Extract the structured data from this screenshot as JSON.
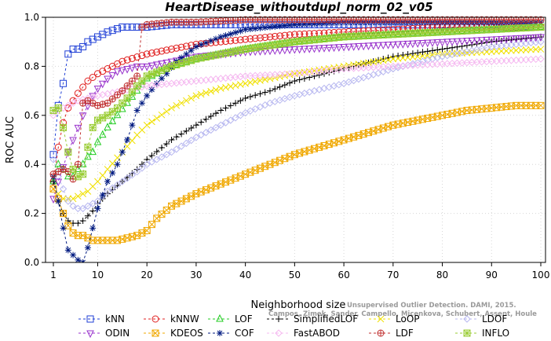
{
  "chart_data": {
    "type": "line",
    "title": "HeartDisease_withoutdupl_norm_02_v05",
    "xlabel": "Neighborhood size",
    "ylabel": "ROC AUC",
    "xlim": [
      1,
      100
    ],
    "ylim": [
      0.0,
      1.0
    ],
    "x_ticks": [
      1,
      10,
      20,
      30,
      40,
      50,
      60,
      70,
      80,
      90,
      100
    ],
    "y_ticks": [
      "0.0",
      "0.2",
      "0.4",
      "0.6",
      "0.8",
      "1.0"
    ],
    "grid": true,
    "legend_position": "bottom",
    "watermark": [
      "Unsupervised Outlier Detection. DAMI, 2015.",
      "Campos, Zimek, Sander, Campello, Micenkova, Schubert, Assent, Houle"
    ],
    "series": [
      {
        "name": "kNN",
        "color": "#1f3fd6",
        "marker": "square",
        "points": [
          [
            1,
            0.44
          ],
          [
            2,
            0.64
          ],
          [
            3,
            0.73
          ],
          [
            4,
            0.85
          ],
          [
            5,
            0.87
          ],
          [
            6,
            0.87
          ],
          [
            7,
            0.88
          ],
          [
            8,
            0.9
          ],
          [
            9,
            0.91
          ],
          [
            10,
            0.92
          ],
          [
            12,
            0.94
          ],
          [
            15,
            0.96
          ],
          [
            18,
            0.96
          ],
          [
            20,
            0.96
          ],
          [
            25,
            0.97
          ],
          [
            30,
            0.97
          ],
          [
            40,
            0.97
          ],
          [
            50,
            0.97
          ],
          [
            60,
            0.97
          ],
          [
            70,
            0.97
          ],
          [
            80,
            0.97
          ],
          [
            90,
            0.97
          ],
          [
            100,
            0.96
          ]
        ]
      },
      {
        "name": "kNNW",
        "color": "#e02020",
        "marker": "circle",
        "points": [
          [
            1,
            0.33
          ],
          [
            2,
            0.47
          ],
          [
            3,
            0.57
          ],
          [
            4,
            0.63
          ],
          [
            5,
            0.66
          ],
          [
            6,
            0.69
          ],
          [
            8,
            0.74
          ],
          [
            10,
            0.77
          ],
          [
            12,
            0.79
          ],
          [
            15,
            0.82
          ],
          [
            20,
            0.85
          ],
          [
            25,
            0.87
          ],
          [
            30,
            0.89
          ],
          [
            40,
            0.91
          ],
          [
            50,
            0.93
          ],
          [
            60,
            0.94
          ],
          [
            70,
            0.95
          ],
          [
            80,
            0.96
          ],
          [
            90,
            0.96
          ],
          [
            100,
            0.96
          ]
        ]
      },
      {
        "name": "LOF",
        "color": "#22cc22",
        "marker": "triangle",
        "points": [
          [
            1,
            0.33
          ],
          [
            2,
            0.4
          ],
          [
            3,
            0.38
          ],
          [
            4,
            0.35
          ],
          [
            5,
            0.35
          ],
          [
            6,
            0.38
          ],
          [
            7,
            0.4
          ],
          [
            8,
            0.43
          ],
          [
            9,
            0.45
          ],
          [
            10,
            0.49
          ],
          [
            12,
            0.55
          ],
          [
            14,
            0.6
          ],
          [
            16,
            0.65
          ],
          [
            18,
            0.7
          ],
          [
            20,
            0.75
          ],
          [
            25,
            0.8
          ],
          [
            30,
            0.83
          ],
          [
            35,
            0.85
          ],
          [
            40,
            0.87
          ],
          [
            50,
            0.9
          ],
          [
            60,
            0.92
          ],
          [
            70,
            0.93
          ],
          [
            80,
            0.94
          ],
          [
            90,
            0.95
          ],
          [
            100,
            0.96
          ]
        ]
      },
      {
        "name": "SimplifiedLOF",
        "color": "#000000",
        "marker": "plus",
        "points": [
          [
            1,
            0.33
          ],
          [
            2,
            0.25
          ],
          [
            3,
            0.2
          ],
          [
            4,
            0.17
          ],
          [
            5,
            0.16
          ],
          [
            6,
            0.16
          ],
          [
            7,
            0.17
          ],
          [
            8,
            0.19
          ],
          [
            9,
            0.21
          ],
          [
            10,
            0.24
          ],
          [
            12,
            0.28
          ],
          [
            15,
            0.33
          ],
          [
            18,
            0.38
          ],
          [
            20,
            0.42
          ],
          [
            25,
            0.5
          ],
          [
            30,
            0.56
          ],
          [
            35,
            0.62
          ],
          [
            40,
            0.67
          ],
          [
            45,
            0.7
          ],
          [
            50,
            0.74
          ],
          [
            60,
            0.79
          ],
          [
            70,
            0.84
          ],
          [
            80,
            0.87
          ],
          [
            90,
            0.9
          ],
          [
            100,
            0.92
          ]
        ]
      },
      {
        "name": "LoOP",
        "color": "#f0e000",
        "marker": "x",
        "points": [
          [
            1,
            0.3
          ],
          [
            2,
            0.28
          ],
          [
            3,
            0.26
          ],
          [
            4,
            0.26
          ],
          [
            5,
            0.26
          ],
          [
            6,
            0.27
          ],
          [
            7,
            0.28
          ],
          [
            8,
            0.29
          ],
          [
            10,
            0.33
          ],
          [
            12,
            0.38
          ],
          [
            15,
            0.45
          ],
          [
            18,
            0.52
          ],
          [
            20,
            0.56
          ],
          [
            25,
            0.63
          ],
          [
            30,
            0.68
          ],
          [
            35,
            0.71
          ],
          [
            40,
            0.73
          ],
          [
            50,
            0.77
          ],
          [
            60,
            0.8
          ],
          [
            70,
            0.83
          ],
          [
            80,
            0.85
          ],
          [
            90,
            0.86
          ],
          [
            100,
            0.87
          ]
        ]
      },
      {
        "name": "LDOF",
        "color": "#b8b8f0",
        "marker": "diamond",
        "points": [
          [
            1,
            0.42
          ],
          [
            2,
            0.35
          ],
          [
            3,
            0.3
          ],
          [
            4,
            0.25
          ],
          [
            5,
            0.23
          ],
          [
            6,
            0.22
          ],
          [
            7,
            0.22
          ],
          [
            8,
            0.23
          ],
          [
            10,
            0.25
          ],
          [
            12,
            0.29
          ],
          [
            15,
            0.33
          ],
          [
            18,
            0.37
          ],
          [
            20,
            0.4
          ],
          [
            25,
            0.45
          ],
          [
            30,
            0.51
          ],
          [
            35,
            0.56
          ],
          [
            40,
            0.61
          ],
          [
            45,
            0.65
          ],
          [
            50,
            0.68
          ],
          [
            60,
            0.73
          ],
          [
            70,
            0.79
          ],
          [
            80,
            0.84
          ],
          [
            90,
            0.88
          ],
          [
            100,
            0.9
          ]
        ]
      },
      {
        "name": "ODIN",
        "color": "#9933cc",
        "marker": "triangle-down",
        "points": [
          [
            1,
            0.26
          ],
          [
            2,
            0.33
          ],
          [
            3,
            0.39
          ],
          [
            4,
            0.45
          ],
          [
            5,
            0.5
          ],
          [
            6,
            0.55
          ],
          [
            7,
            0.6
          ],
          [
            8,
            0.64
          ],
          [
            9,
            0.68
          ],
          [
            10,
            0.71
          ],
          [
            12,
            0.75
          ],
          [
            14,
            0.78
          ],
          [
            16,
            0.79
          ],
          [
            18,
            0.8
          ],
          [
            20,
            0.8
          ],
          [
            25,
            0.82
          ],
          [
            30,
            0.84
          ],
          [
            40,
            0.86
          ],
          [
            50,
            0.87
          ],
          [
            60,
            0.88
          ],
          [
            70,
            0.89
          ],
          [
            80,
            0.9
          ],
          [
            90,
            0.91
          ],
          [
            100,
            0.92
          ]
        ]
      },
      {
        "name": "KDEOS",
        "color": "#f0a800",
        "marker": "square-x",
        "points": [
          [
            1,
            0.3
          ],
          [
            2,
            0.26
          ],
          [
            3,
            0.2
          ],
          [
            4,
            0.15
          ],
          [
            5,
            0.12
          ],
          [
            6,
            0.11
          ],
          [
            7,
            0.11
          ],
          [
            8,
            0.1
          ],
          [
            9,
            0.09
          ],
          [
            10,
            0.09
          ],
          [
            12,
            0.09
          ],
          [
            14,
            0.09
          ],
          [
            16,
            0.1
          ],
          [
            18,
            0.11
          ],
          [
            20,
            0.13
          ],
          [
            22,
            0.18
          ],
          [
            25,
            0.23
          ],
          [
            28,
            0.26
          ],
          [
            30,
            0.28
          ],
          [
            35,
            0.32
          ],
          [
            40,
            0.36
          ],
          [
            45,
            0.4
          ],
          [
            50,
            0.44
          ],
          [
            55,
            0.47
          ],
          [
            60,
            0.5
          ],
          [
            65,
            0.53
          ],
          [
            70,
            0.56
          ],
          [
            75,
            0.58
          ],
          [
            80,
            0.6
          ],
          [
            85,
            0.62
          ],
          [
            90,
            0.63
          ],
          [
            95,
            0.64
          ],
          [
            100,
            0.64
          ]
        ]
      },
      {
        "name": "COF",
        "color": "#001a80",
        "marker": "star",
        "points": [
          [
            1,
            0.35
          ],
          [
            2,
            0.25
          ],
          [
            3,
            0.14
          ],
          [
            4,
            0.05
          ],
          [
            5,
            0.03
          ],
          [
            6,
            0.01
          ],
          [
            7,
            0.0
          ],
          [
            8,
            0.06
          ],
          [
            10,
            0.22
          ],
          [
            12,
            0.33
          ],
          [
            14,
            0.4
          ],
          [
            16,
            0.5
          ],
          [
            18,
            0.62
          ],
          [
            20,
            0.68
          ],
          [
            22,
            0.73
          ],
          [
            24,
            0.77
          ],
          [
            26,
            0.82
          ],
          [
            28,
            0.85
          ],
          [
            30,
            0.88
          ],
          [
            35,
            0.92
          ],
          [
            40,
            0.95
          ],
          [
            50,
            0.97
          ],
          [
            60,
            0.98
          ],
          [
            70,
            0.98
          ],
          [
            80,
            0.98
          ],
          [
            90,
            0.98
          ],
          [
            100,
            0.98
          ]
        ]
      },
      {
        "name": "FastABOD",
        "color": "#f5b8f0",
        "marker": "diamond",
        "points": [
          [
            1,
            0.6
          ],
          [
            2,
            0.62
          ],
          [
            3,
            0.63
          ],
          [
            4,
            0.64
          ],
          [
            5,
            0.65
          ],
          [
            6,
            0.66
          ],
          [
            8,
            0.67
          ],
          [
            10,
            0.68
          ],
          [
            15,
            0.7
          ],
          [
            20,
            0.72
          ],
          [
            25,
            0.73
          ],
          [
            30,
            0.74
          ],
          [
            40,
            0.76
          ],
          [
            50,
            0.77
          ],
          [
            60,
            0.79
          ],
          [
            70,
            0.8
          ],
          [
            80,
            0.81
          ],
          [
            90,
            0.82
          ],
          [
            100,
            0.83
          ]
        ]
      },
      {
        "name": "LDF",
        "color": "#c03030",
        "marker": "circle-plus",
        "points": [
          [
            1,
            0.36
          ],
          [
            2,
            0.37
          ],
          [
            3,
            0.38
          ],
          [
            4,
            0.37
          ],
          [
            5,
            0.34
          ],
          [
            6,
            0.4
          ],
          [
            7,
            0.65
          ],
          [
            8,
            0.66
          ],
          [
            9,
            0.65
          ],
          [
            10,
            0.64
          ],
          [
            12,
            0.65
          ],
          [
            15,
            0.7
          ],
          [
            18,
            0.76
          ],
          [
            19,
            0.96
          ],
          [
            20,
            0.97
          ],
          [
            25,
            0.98
          ],
          [
            30,
            0.98
          ],
          [
            40,
            0.99
          ],
          [
            50,
            0.99
          ],
          [
            60,
            0.99
          ],
          [
            70,
            0.99
          ],
          [
            80,
            0.99
          ],
          [
            90,
            0.99
          ],
          [
            100,
            0.99
          ]
        ]
      },
      {
        "name": "INFLO",
        "color": "#99cc33",
        "marker": "square-cross",
        "points": [
          [
            1,
            0.62
          ],
          [
            2,
            0.63
          ],
          [
            3,
            0.55
          ],
          [
            4,
            0.45
          ],
          [
            5,
            0.38
          ],
          [
            6,
            0.35
          ],
          [
            7,
            0.36
          ],
          [
            8,
            0.47
          ],
          [
            9,
            0.55
          ],
          [
            10,
            0.58
          ],
          [
            12,
            0.6
          ],
          [
            14,
            0.63
          ],
          [
            16,
            0.67
          ],
          [
            18,
            0.72
          ],
          [
            20,
            0.76
          ],
          [
            25,
            0.8
          ],
          [
            30,
            0.83
          ],
          [
            35,
            0.85
          ],
          [
            40,
            0.87
          ],
          [
            50,
            0.9
          ],
          [
            60,
            0.92
          ],
          [
            70,
            0.93
          ],
          [
            80,
            0.94
          ],
          [
            90,
            0.95
          ],
          [
            100,
            0.96
          ]
        ]
      }
    ]
  }
}
